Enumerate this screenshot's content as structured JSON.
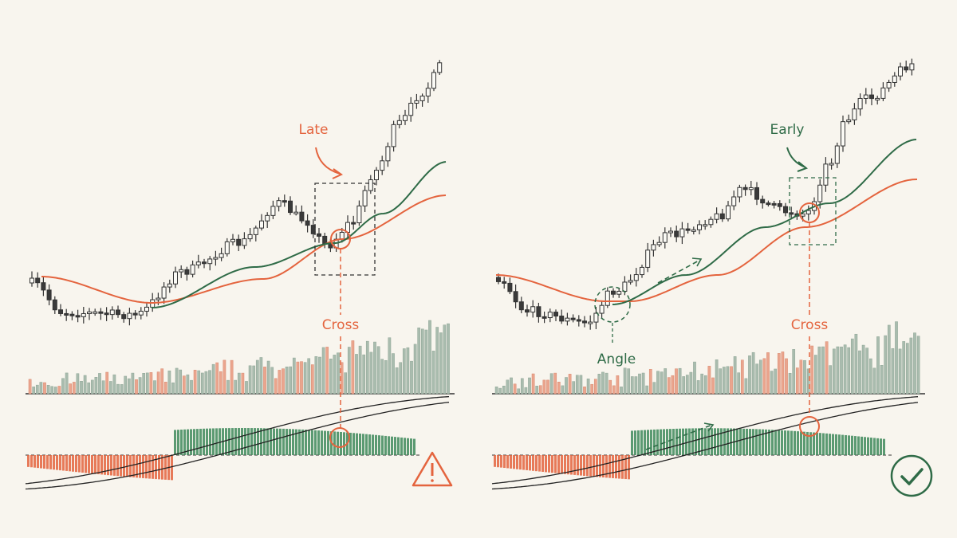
{
  "left": {
    "annotation": "Late",
    "cross_label": "Cross"
  },
  "right": {
    "annotation": "Early",
    "cross_label": "Cross",
    "angle_label": "Angle"
  }
}
